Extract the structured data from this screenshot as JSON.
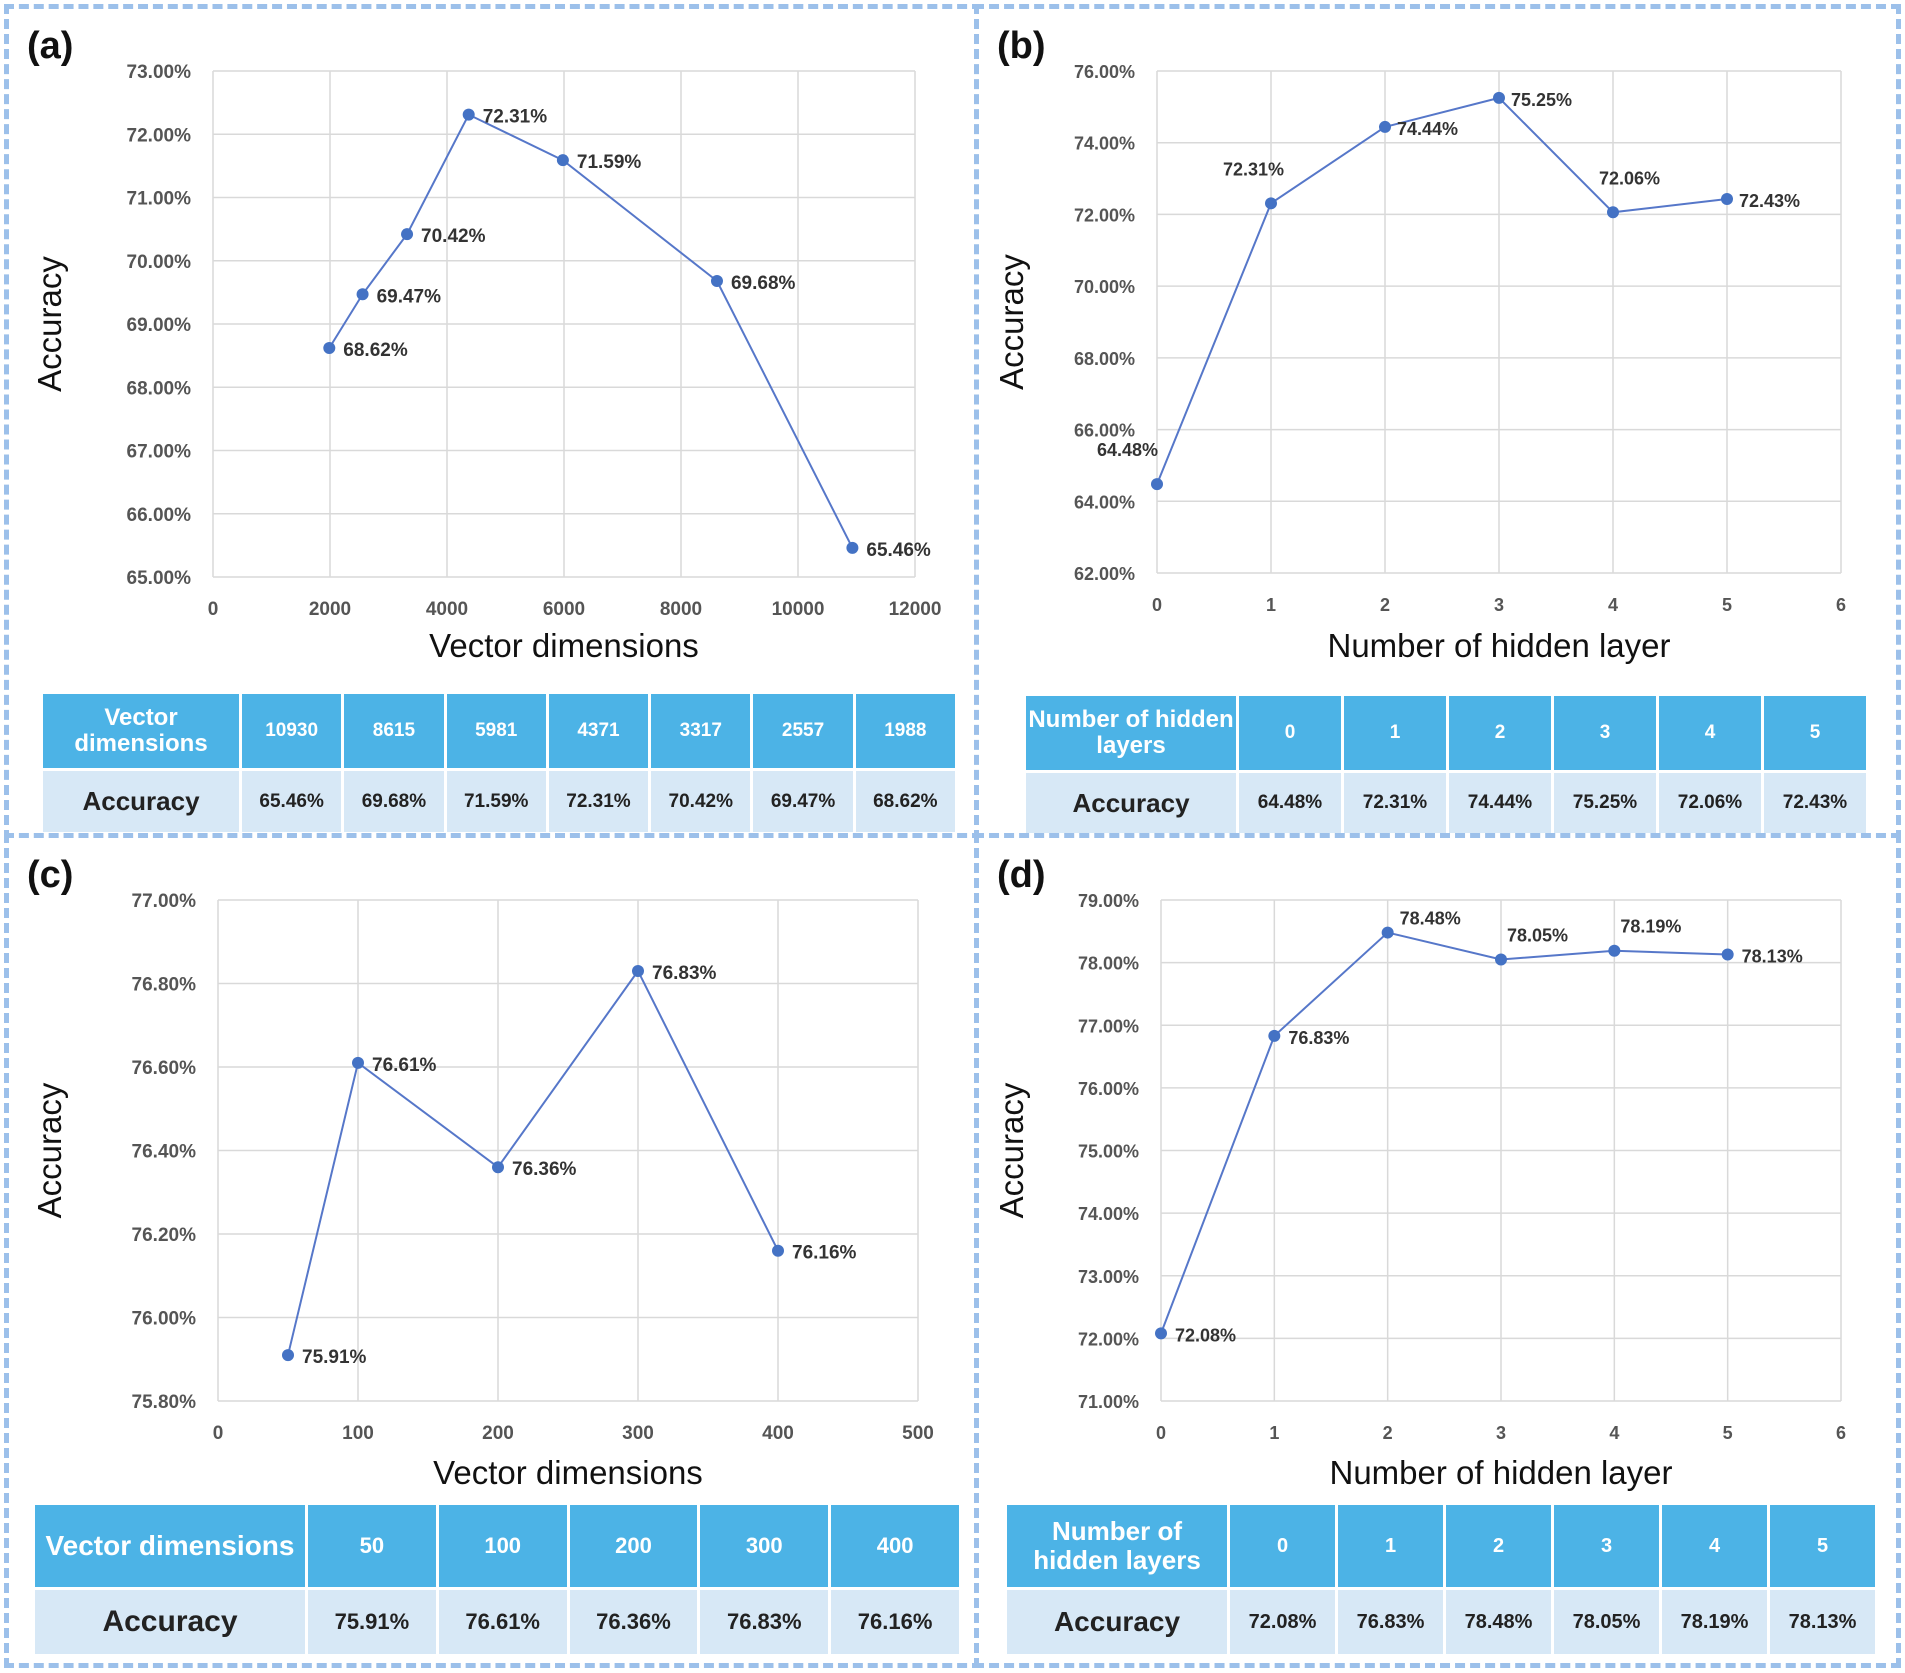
{
  "chart_data": [
    {
      "panel": "(a)",
      "type": "line",
      "xlabel": "Vector dimensions",
      "ylabel": "Accuracy",
      "xlim": [
        0,
        12000
      ],
      "xticks": [
        0,
        2000,
        4000,
        6000,
        8000,
        10000,
        12000
      ],
      "xtick_labels": [
        "0",
        "2000",
        "4000",
        "6000",
        "8000",
        "10000",
        "12000"
      ],
      "ylim": [
        65,
        73
      ],
      "yticks": [
        65,
        66,
        67,
        68,
        69,
        70,
        71,
        72,
        73
      ],
      "ytick_labels": [
        "65.00%",
        "66.00%",
        "67.00%",
        "68.00%",
        "69.00%",
        "70.00%",
        "71.00%",
        "72.00%",
        "73.00%"
      ],
      "grid": true,
      "series": [
        {
          "name": "Accuracy",
          "x": [
            1988,
            2557,
            3317,
            4371,
            5981,
            8615,
            10930
          ],
          "values": [
            68.62,
            69.47,
            70.42,
            72.31,
            71.59,
            69.68,
            65.46
          ],
          "labels": [
            "68.62%",
            "69.47%",
            "70.42%",
            "72.31%",
            "71.59%",
            "69.68%",
            "65.46%"
          ]
        }
      ]
    },
    {
      "panel": "(b)",
      "type": "line",
      "xlabel": "Number of hidden layer",
      "ylabel": "Accuracy",
      "xlim": [
        0,
        6
      ],
      "xticks": [
        0,
        1,
        2,
        3,
        4,
        5,
        6
      ],
      "xtick_labels": [
        "0",
        "1",
        "2",
        "3",
        "4",
        "5",
        "6"
      ],
      "ylim": [
        62,
        76
      ],
      "yticks": [
        62,
        64,
        66,
        68,
        70,
        72,
        74,
        76
      ],
      "ytick_labels": [
        "62.00%",
        "64.00%",
        "66.00%",
        "68.00%",
        "70.00%",
        "72.00%",
        "74.00%",
        "76.00%"
      ],
      "grid": true,
      "series": [
        {
          "name": "Accuracy",
          "x": [
            0,
            1,
            2,
            3,
            4,
            5
          ],
          "values": [
            64.48,
            72.31,
            74.44,
            75.25,
            72.06,
            72.43
          ],
          "labels": [
            "64.48%",
            "72.31%",
            "74.44%",
            "75.25%",
            "72.06%",
            "72.43%"
          ]
        }
      ]
    },
    {
      "panel": "(c)",
      "type": "line",
      "xlabel": "Vector dimensions",
      "ylabel": "Accuracy",
      "xlim": [
        0,
        500
      ],
      "xticks": [
        0,
        100,
        200,
        300,
        400,
        500
      ],
      "xtick_labels": [
        "0",
        "100",
        "200",
        "300",
        "400",
        "500"
      ],
      "ylim": [
        75.8,
        77.0
      ],
      "yticks": [
        75.8,
        76.0,
        76.2,
        76.4,
        76.6,
        76.8,
        77.0
      ],
      "ytick_labels": [
        "75.80%",
        "76.00%",
        "76.20%",
        "76.40%",
        "76.60%",
        "76.80%",
        "77.00%"
      ],
      "grid": true,
      "series": [
        {
          "name": "Accuracy",
          "x": [
            50,
            100,
            200,
            300,
            400
          ],
          "values": [
            75.91,
            76.61,
            76.36,
            76.83,
            76.16
          ],
          "labels": [
            "75.91%",
            "76.61%",
            "76.36%",
            "76.83%",
            "76.16%"
          ]
        }
      ]
    },
    {
      "panel": "(d)",
      "type": "line",
      "xlabel": "Number of hidden layer",
      "ylabel": "Accuracy",
      "xlim": [
        0,
        6
      ],
      "xticks": [
        0,
        1,
        2,
        3,
        4,
        5,
        6
      ],
      "xtick_labels": [
        "0",
        "1",
        "2",
        "3",
        "4",
        "5",
        "6"
      ],
      "ylim": [
        71,
        79
      ],
      "yticks": [
        71,
        72,
        73,
        74,
        75,
        76,
        77,
        78,
        79
      ],
      "ytick_labels": [
        "71.00%",
        "72.00%",
        "73.00%",
        "74.00%",
        "75.00%",
        "76.00%",
        "77.00%",
        "78.00%",
        "79.00%"
      ],
      "grid": true,
      "series": [
        {
          "name": "Accuracy",
          "x": [
            0,
            1,
            2,
            3,
            4,
            5
          ],
          "values": [
            72.08,
            76.83,
            78.48,
            78.05,
            78.19,
            78.13
          ],
          "labels": [
            "72.08%",
            "76.83%",
            "78.48%",
            "78.05%",
            "78.19%",
            "78.13%"
          ]
        }
      ]
    }
  ],
  "tables": [
    {
      "header_label": "Vector dimensions",
      "header_values": [
        "10930",
        "8615",
        "5981",
        "4371",
        "3317",
        "2557",
        "1988"
      ],
      "row_label": "Accuracy",
      "row_values": [
        "65.46%",
        "69.68%",
        "71.59%",
        "72.31%",
        "70.42%",
        "69.47%",
        "68.62%"
      ]
    },
    {
      "header_label": "Number of hidden layers",
      "header_values": [
        "0",
        "1",
        "2",
        "3",
        "4",
        "5"
      ],
      "row_label": "Accuracy",
      "row_values": [
        "64.48%",
        "72.31%",
        "74.44%",
        "75.25%",
        "72.06%",
        "72.43%"
      ]
    },
    {
      "header_label": "Vector dimensions",
      "header_values": [
        "50",
        "100",
        "200",
        "300",
        "400"
      ],
      "row_label": "Accuracy",
      "row_values": [
        "75.91%",
        "76.61%",
        "76.36%",
        "76.83%",
        "76.16%"
      ]
    },
    {
      "header_label": "Number of hidden layers",
      "header_values": [
        "0",
        "1",
        "2",
        "3",
        "4",
        "5"
      ],
      "row_label": "Accuracy",
      "row_values": [
        "72.08%",
        "76.83%",
        "78.48%",
        "78.05%",
        "78.19%",
        "78.13%"
      ]
    }
  ],
  "colors": {
    "line": "#5677c9",
    "marker": "#4472c4",
    "grid": "#d9d9d9",
    "table_header": "#4cb3e6",
    "table_row": "#d7e8f6",
    "border": "#9cc0ea"
  }
}
